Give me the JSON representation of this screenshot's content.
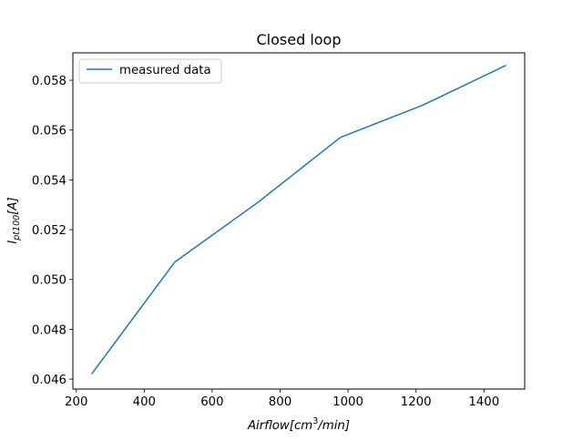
{
  "chart_data": {
    "type": "line",
    "title": "Closed loop",
    "xlabel": {
      "main": "Airflow[cm",
      "sup": "3",
      "tail": "/min]"
    },
    "ylabel": {
      "main": "I",
      "sub": "pt100",
      "tail": "[A]"
    },
    "xlim": [
      190,
      1520
    ],
    "ylim": [
      0.0456,
      0.0591
    ],
    "xticks": [
      200,
      400,
      600,
      800,
      1000,
      1200,
      1400
    ],
    "xtick_labels": [
      "200",
      "400",
      "600",
      "800",
      "1000",
      "1200",
      "1400"
    ],
    "yticks": [
      0.046,
      0.048,
      0.05,
      0.052,
      0.054,
      0.056,
      0.058
    ],
    "ytick_labels": [
      "0.046",
      "0.048",
      "0.050",
      "0.052",
      "0.054",
      "0.056",
      "0.058"
    ],
    "grid": false,
    "legend_position": "upper-left",
    "series": [
      {
        "name": "measured data",
        "color": "#1f77b4",
        "x": [
          245,
          490,
          735,
          977,
          1220,
          1465
        ],
        "y": [
          0.0462,
          0.0507,
          0.0531,
          0.0557,
          0.057,
          0.0586
        ]
      }
    ]
  }
}
